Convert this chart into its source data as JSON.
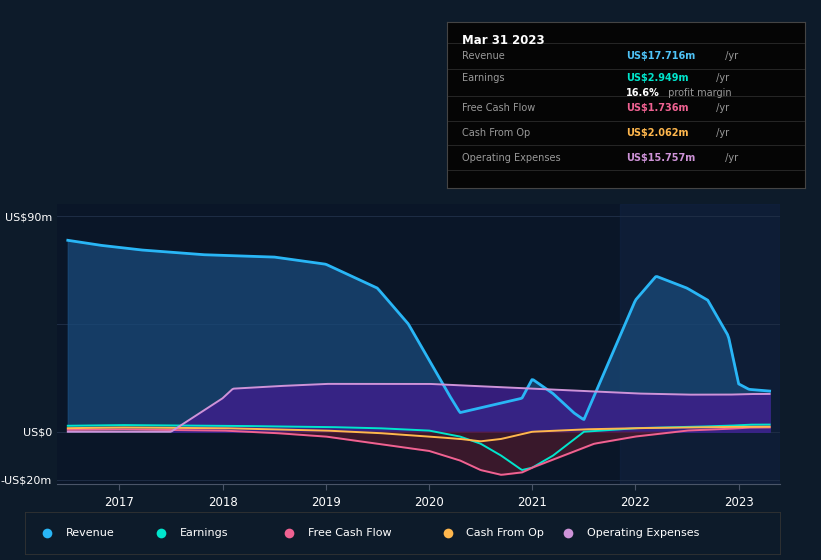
{
  "bg_color": "#0d1b2a",
  "plot_bg_color": "#0a1628",
  "title": "Mar 31 2023",
  "info_box_rows": [
    {
      "label": "Revenue",
      "value": "US$17.716m",
      "color": "#4fc3f7"
    },
    {
      "label": "Earnings",
      "value": "US$2.949m",
      "color": "#00e5cc"
    },
    {
      "label": "",
      "value": "16.6% profit margin",
      "color": "white"
    },
    {
      "label": "Free Cash Flow",
      "value": "US$1.736m",
      "color": "#f06292"
    },
    {
      "label": "Cash From Op",
      "value": "US$2.062m",
      "color": "#ffb74d"
    },
    {
      "label": "Operating Expenses",
      "value": "US$15.757m",
      "color": "#ce93d8"
    }
  ],
  "legend": [
    {
      "label": "Revenue",
      "color": "#29b6f6"
    },
    {
      "label": "Earnings",
      "color": "#00e5cc"
    },
    {
      "label": "Free Cash Flow",
      "color": "#f06292"
    },
    {
      "label": "Cash From Op",
      "color": "#ffb74d"
    },
    {
      "label": "Operating Expenses",
      "color": "#ce93d8"
    }
  ],
  "revenue_pts": [
    [
      2016.5,
      80
    ],
    [
      2016.8,
      78
    ],
    [
      2017.2,
      76
    ],
    [
      2017.8,
      74
    ],
    [
      2018.5,
      73
    ],
    [
      2019.0,
      70
    ],
    [
      2019.5,
      60
    ],
    [
      2019.8,
      45
    ],
    [
      2020.0,
      30
    ],
    [
      2020.2,
      15
    ],
    [
      2020.3,
      8
    ],
    [
      2020.5,
      10
    ],
    [
      2020.7,
      12
    ],
    [
      2020.9,
      14
    ],
    [
      2021.0,
      22
    ],
    [
      2021.2,
      16
    ],
    [
      2021.4,
      8
    ],
    [
      2021.5,
      5
    ],
    [
      2022.0,
      55
    ],
    [
      2022.2,
      65
    ],
    [
      2022.5,
      60
    ],
    [
      2022.7,
      55
    ],
    [
      2022.9,
      40
    ],
    [
      2023.0,
      20
    ],
    [
      2023.1,
      17.716
    ],
    [
      2023.3,
      17
    ]
  ],
  "earnings_pts": [
    [
      2016.5,
      2.5
    ],
    [
      2017.0,
      2.8
    ],
    [
      2018.0,
      2.5
    ],
    [
      2019.0,
      2.0
    ],
    [
      2019.5,
      1.5
    ],
    [
      2020.0,
      0.5
    ],
    [
      2020.3,
      -2
    ],
    [
      2020.5,
      -5
    ],
    [
      2020.7,
      -10
    ],
    [
      2020.9,
      -16
    ],
    [
      2021.0,
      -15
    ],
    [
      2021.2,
      -10
    ],
    [
      2021.5,
      0
    ],
    [
      2022.0,
      1.5
    ],
    [
      2022.5,
      2.0
    ],
    [
      2022.9,
      2.5
    ],
    [
      2023.1,
      2.949
    ],
    [
      2023.3,
      3.0
    ]
  ],
  "fcf_pts": [
    [
      2016.5,
      0.8
    ],
    [
      2017.0,
      1.0
    ],
    [
      2018.0,
      0.5
    ],
    [
      2018.5,
      -0.5
    ],
    [
      2019.0,
      -2
    ],
    [
      2019.5,
      -5
    ],
    [
      2020.0,
      -8
    ],
    [
      2020.3,
      -12
    ],
    [
      2020.5,
      -16
    ],
    [
      2020.7,
      -18
    ],
    [
      2020.9,
      -17
    ],
    [
      2021.0,
      -15
    ],
    [
      2021.3,
      -10
    ],
    [
      2021.6,
      -5
    ],
    [
      2022.0,
      -2
    ],
    [
      2022.5,
      0.5
    ],
    [
      2022.9,
      1.2
    ],
    [
      2023.1,
      1.736
    ],
    [
      2023.3,
      1.8
    ]
  ],
  "cfo_pts": [
    [
      2016.5,
      1.5
    ],
    [
      2017.0,
      1.8
    ],
    [
      2018.0,
      1.5
    ],
    [
      2019.0,
      0.5
    ],
    [
      2019.5,
      -0.5
    ],
    [
      2020.0,
      -2
    ],
    [
      2020.3,
      -3
    ],
    [
      2020.5,
      -4
    ],
    [
      2020.7,
      -3
    ],
    [
      2021.0,
      0
    ],
    [
      2021.5,
      1.0
    ],
    [
      2022.0,
      1.5
    ],
    [
      2022.5,
      1.8
    ],
    [
      2022.9,
      2.0
    ],
    [
      2023.1,
      2.062
    ],
    [
      2023.3,
      2.1
    ]
  ],
  "opex_pts": [
    [
      2016.5,
      0
    ],
    [
      2017.5,
      0
    ],
    [
      2018.0,
      14
    ],
    [
      2018.1,
      18
    ],
    [
      2018.5,
      19
    ],
    [
      2019.0,
      20
    ],
    [
      2020.0,
      20
    ],
    [
      2021.0,
      18
    ],
    [
      2021.5,
      17
    ],
    [
      2022.0,
      16
    ],
    [
      2022.5,
      15.5
    ],
    [
      2022.9,
      15.5
    ],
    [
      2023.1,
      15.757
    ],
    [
      2023.3,
      15.8
    ]
  ],
  "x_min": 2016.4,
  "x_max": 2023.4,
  "y_min": -22,
  "y_max": 95,
  "x_ticks": [
    2017,
    2018,
    2019,
    2020,
    2021,
    2022,
    2023
  ],
  "x_tick_labels": [
    "2017",
    "2018",
    "2019",
    "2020",
    "2021",
    "2022",
    "2023"
  ],
  "y_ticks": [
    90,
    0,
    -20
  ],
  "y_tick_labels": [
    "US$90m",
    "US$0",
    "-US$20m"
  ]
}
